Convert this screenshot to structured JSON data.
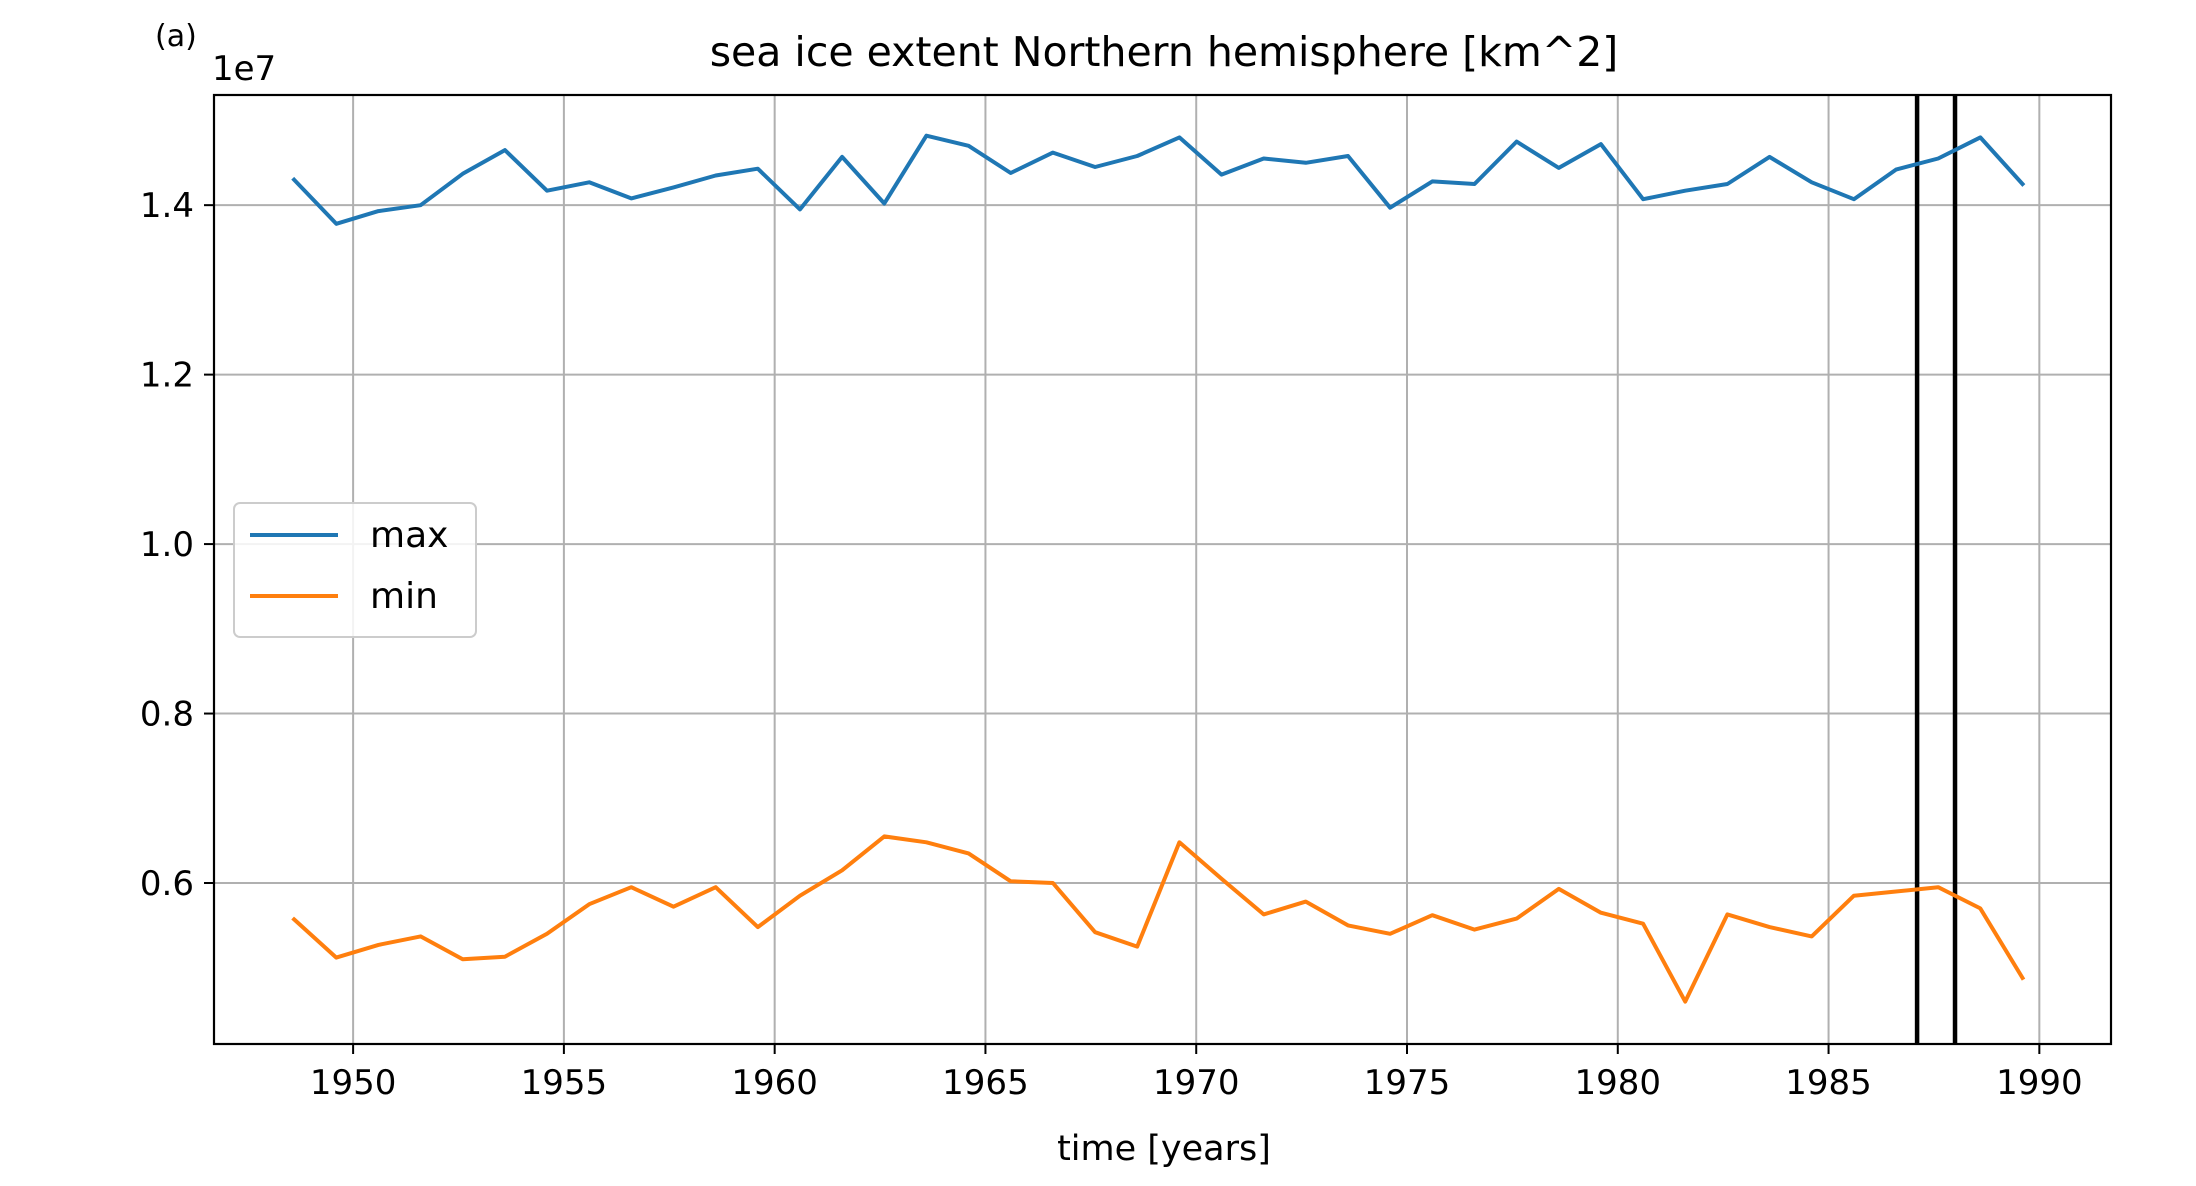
{
  "chart_data": {
    "type": "line",
    "panel_label": "(a)",
    "title": "sea ice extent Northern hemisphere [km^2]",
    "xlabel": "time [years]",
    "ylabel": "",
    "y_offset_label": "1e7",
    "xlim": [
      1946.7,
      1991.7
    ],
    "ylim": [
      4.1,
      15.3
    ],
    "y_unit_scale": 1000000.0,
    "grid": true,
    "legend_placement": "center-left",
    "x_ticks": [
      1950,
      1955,
      1960,
      1965,
      1970,
      1975,
      1980,
      1985,
      1990
    ],
    "x_tick_labels": [
      "1950",
      "1955",
      "1960",
      "1965",
      "1970",
      "1975",
      "1980",
      "1985",
      "1990"
    ],
    "y_ticks": [
      6,
      8,
      10,
      12,
      14
    ],
    "y_tick_labels": [
      "0.6",
      "0.8",
      "1.0",
      "1.2",
      "1.4"
    ],
    "x": [
      1948.6,
      1949.6,
      1950.6,
      1951.6,
      1952.6,
      1953.6,
      1954.6,
      1955.6,
      1956.6,
      1957.6,
      1958.6,
      1959.6,
      1960.6,
      1961.6,
      1962.6,
      1963.6,
      1964.6,
      1965.6,
      1966.6,
      1967.6,
      1968.6,
      1969.6,
      1970.6,
      1971.6,
      1972.6,
      1973.6,
      1974.6,
      1975.6,
      1976.6,
      1977.6,
      1978.6,
      1979.6,
      1980.6,
      1981.6,
      1982.6,
      1983.6,
      1984.6,
      1985.6,
      1986.6,
      1987.6,
      1988.6,
      1989.6
    ],
    "series": [
      {
        "name": "max",
        "color": "#1f77b4",
        "values": [
          14.3,
          13.78,
          13.93,
          14.0,
          14.37,
          14.65,
          14.17,
          14.27,
          14.08,
          14.21,
          14.35,
          14.43,
          13.95,
          14.57,
          14.02,
          14.82,
          14.7,
          14.38,
          14.62,
          14.45,
          14.58,
          14.8,
          14.36,
          14.55,
          14.5,
          14.58,
          13.97,
          14.28,
          14.25,
          14.75,
          14.44,
          14.72,
          14.07,
          14.17,
          14.25,
          14.57,
          14.27,
          14.07,
          14.42,
          14.55,
          14.8,
          14.25
        ]
      },
      {
        "name": "min",
        "color": "#ff7f0e",
        "values": [
          5.57,
          5.12,
          5.27,
          5.37,
          5.1,
          5.13,
          5.4,
          5.75,
          5.95,
          5.72,
          5.95,
          5.48,
          5.85,
          6.15,
          6.55,
          6.48,
          6.35,
          6.02,
          6.0,
          5.42,
          5.25,
          6.48,
          6.05,
          5.63,
          5.78,
          5.5,
          5.4,
          5.62,
          5.45,
          5.58,
          5.93,
          5.65,
          5.52,
          4.6,
          5.63,
          5.48,
          5.37,
          5.85,
          5.9,
          5.95,
          5.7,
          4.88
        ]
      }
    ],
    "vertical_lines": [
      {
        "x": 1987.1,
        "color": "#000000"
      },
      {
        "x": 1988.0,
        "color": "#000000"
      }
    ]
  }
}
